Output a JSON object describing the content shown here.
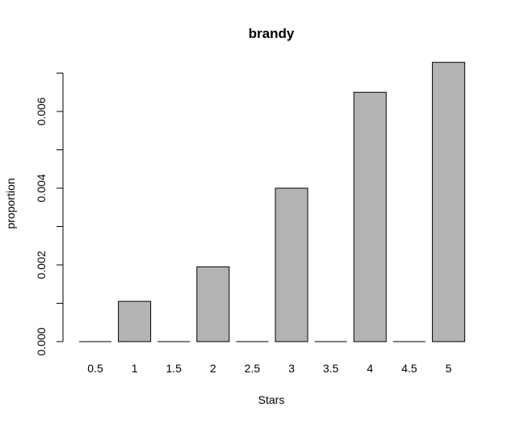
{
  "chart_data": {
    "type": "bar",
    "title": "brandy",
    "xlabel": "Stars",
    "ylabel": "proportion",
    "categories": [
      "0.5",
      "1",
      "1.5",
      "2",
      "2.5",
      "3",
      "3.5",
      "4",
      "4.5",
      "5"
    ],
    "values": [
      0.0,
      0.00105,
      0.0,
      0.00195,
      0.0,
      0.004,
      0.0,
      0.0065,
      0.0,
      0.00728
    ],
    "yticks": [
      "0.000",
      "0.002",
      "0.004",
      "0.006"
    ],
    "ylim": [
      0,
      0.007
    ],
    "bar_color": "#b3b3b3",
    "border_color": "#000000",
    "grid": false,
    "legend": "none"
  }
}
